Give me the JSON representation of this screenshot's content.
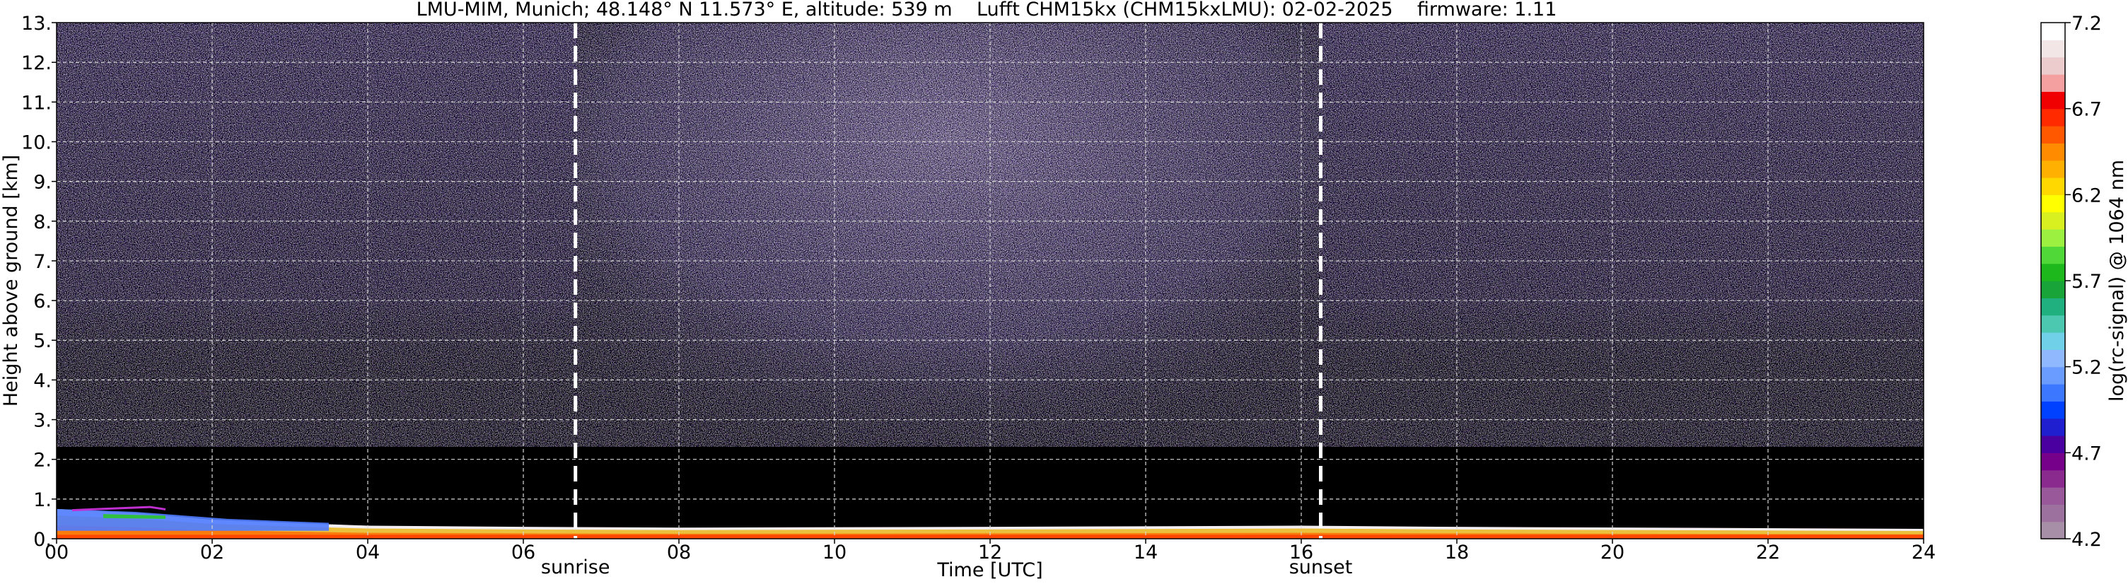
{
  "chart_data": {
    "type": "heatmap",
    "title": "LMU-MIM, Munich; 48.148° N 11.573° E, altitude: 539 m    Lufft CHM15kx (CHM15kxLMU): 02-02-2025    firmware: 1.11",
    "xlabel": "Time [UTC]",
    "ylabel": "Height above ground [km]",
    "xlim": [
      0,
      24
    ],
    "ylim": [
      0,
      13
    ],
    "x_ticks": [
      "00",
      "02",
      "04",
      "06",
      "08",
      "10",
      "12",
      "14",
      "16",
      "18",
      "20",
      "22",
      "24"
    ],
    "y_ticks": [
      "0.",
      "1.",
      "2.",
      "3.",
      "4.",
      "5.",
      "6.",
      "7.",
      "8.",
      "9.",
      "10.",
      "11.",
      "12.",
      "13."
    ],
    "grid": true,
    "events": [
      {
        "label": "sunrise",
        "time": 6.67
      },
      {
        "label": "sunset",
        "time": 16.25
      }
    ],
    "colorbar": {
      "label": "log(rc-signal) @ 1064 nm",
      "range": [
        4.2,
        7.2
      ],
      "ticks": [
        "4.2",
        "4.7",
        "5.2",
        "5.7",
        "6.2",
        "6.7",
        "7.2"
      ],
      "colors": [
        "#a78fa7",
        "#9d719d",
        "#995899",
        "#8a2a8f",
        "#76008a",
        "#4a00a0",
        "#1f1fd0",
        "#0040ff",
        "#3c78ff",
        "#6a9cff",
        "#8fb8ff",
        "#6fd0e8",
        "#4dc8b0",
        "#20b080",
        "#19a43a",
        "#1cb81c",
        "#50d838",
        "#9cf040",
        "#d8f020",
        "#ffff00",
        "#ffd800",
        "#ffb000",
        "#ff8c00",
        "#ff5800",
        "#ff2a00",
        "#f00000",
        "#f5a0a0",
        "#eccccc",
        "#f3e6e6",
        "#ffffff"
      ]
    },
    "aerosol_layer_top_km": [
      {
        "t": 0.0,
        "h": 0.75
      },
      {
        "t": 1.0,
        "h": 0.65
      },
      {
        "t": 2.0,
        "h": 0.48
      },
      {
        "t": 3.0,
        "h": 0.4
      },
      {
        "t": 4.0,
        "h": 0.33
      },
      {
        "t": 6.0,
        "h": 0.3
      },
      {
        "t": 8.0,
        "h": 0.28
      },
      {
        "t": 12.0,
        "h": 0.3
      },
      {
        "t": 16.0,
        "h": 0.33
      },
      {
        "t": 18.0,
        "h": 0.3
      },
      {
        "t": 24.0,
        "h": 0.25
      }
    ]
  }
}
